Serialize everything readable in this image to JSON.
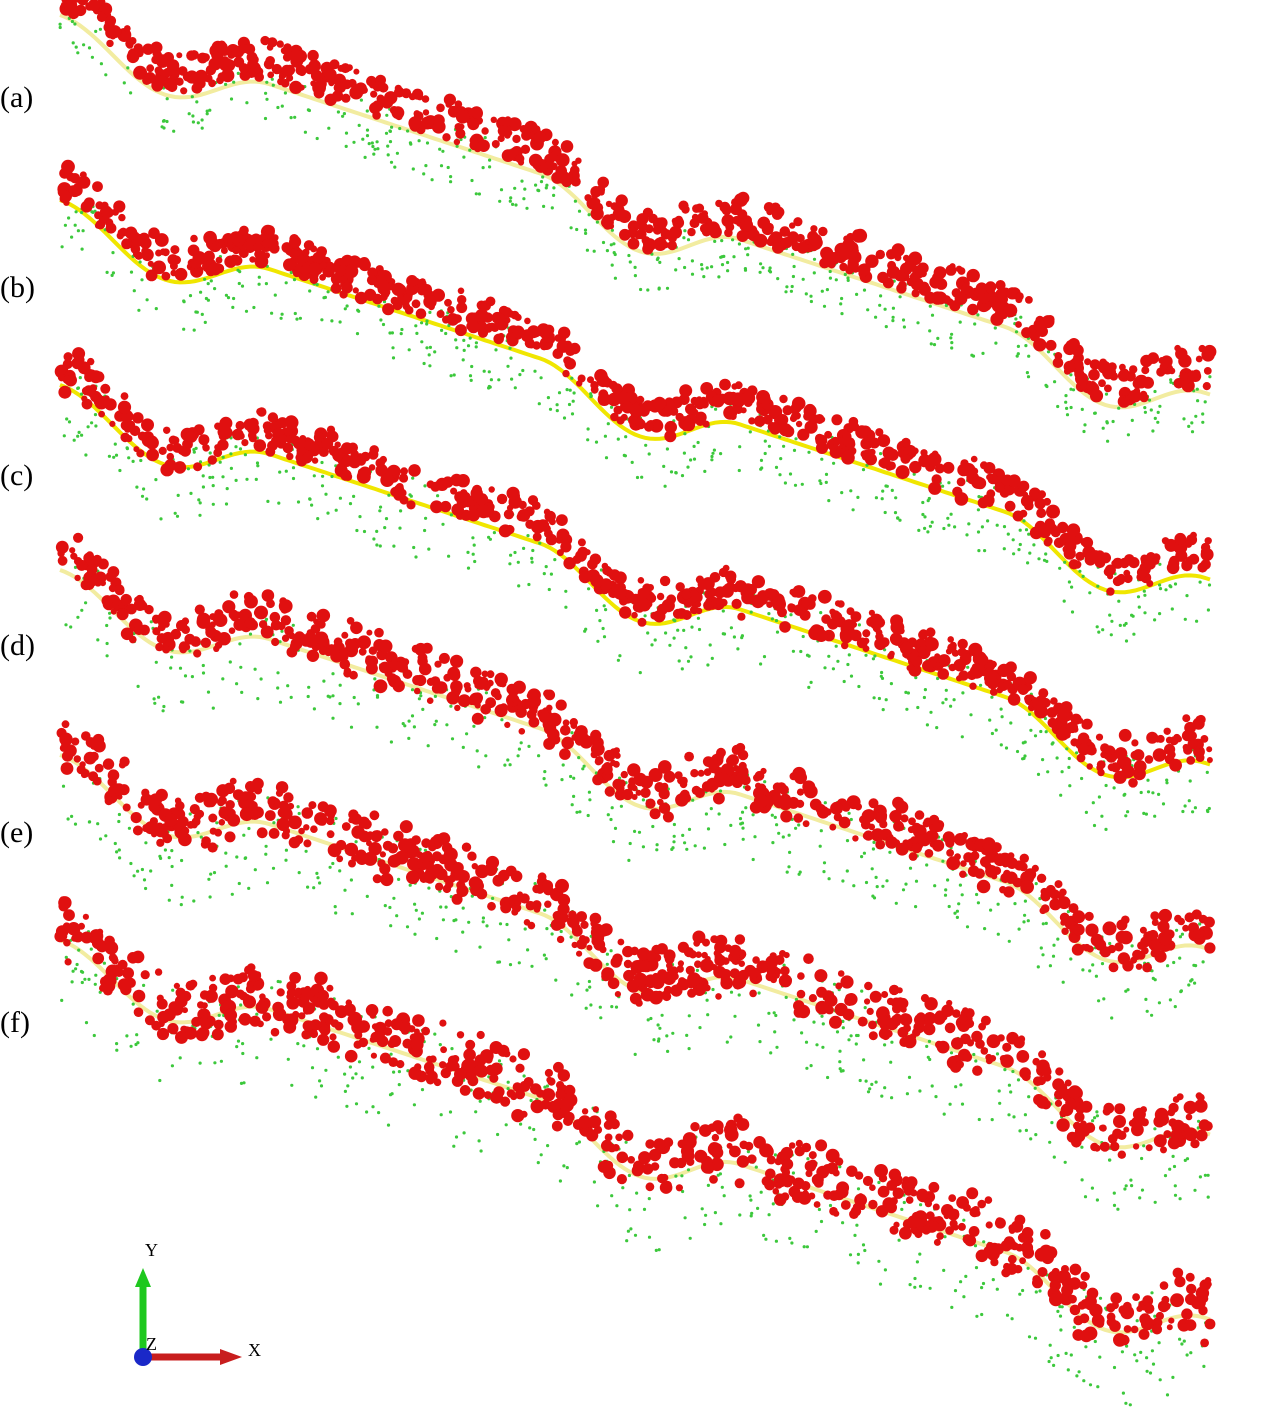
{
  "panels": {
    "labels": [
      "(a)",
      "(b)",
      "(c)",
      "(d)",
      "(e)",
      "(f)"
    ]
  },
  "axes": {
    "x": "X",
    "y": "Y",
    "z": "Z"
  }
}
